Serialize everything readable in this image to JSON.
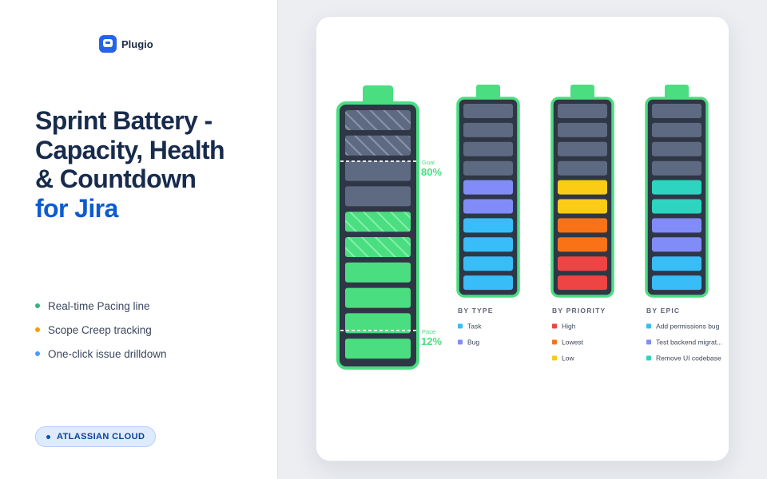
{
  "brand": {
    "name": "Plugio"
  },
  "headline": {
    "lines": [
      "Sprint Battery -",
      "Capacity, Health",
      "& Countdown"
    ],
    "accent": "for Jira"
  },
  "features": [
    {
      "label": "Real-time Pacing line",
      "color": "#36b37e"
    },
    {
      "label": "Scope Creep tracking",
      "color": "#f59e0b"
    },
    {
      "label": "One-click issue drilldown",
      "color": "#4c9aff"
    }
  ],
  "badge": {
    "label": "ATLASSIAN CLOUD"
  },
  "colors": {
    "battery_green": "#4ade80",
    "cell_gray": "#5e6a82",
    "shell": "#2f3747",
    "task": "#38bdf8",
    "bug": "#818cf8",
    "high": "#ef4444",
    "lowest": "#f97316",
    "low": "#facc15",
    "teal": "#2dd4bf"
  },
  "main_battery": {
    "goal": {
      "label": "Goal",
      "value": "80%"
    },
    "pace": {
      "label": "Pace",
      "value": "12%"
    },
    "cells": [
      "hatched-gray",
      "hatched-gray",
      "gray",
      "gray",
      "hatched-green",
      "hatched-green",
      "green",
      "green",
      "green",
      "green"
    ]
  },
  "breakdowns": [
    {
      "title": "BY TYPE",
      "cells": [
        "gray",
        "gray",
        "gray",
        "gray",
        "#818cf8",
        "#818cf8",
        "#38bdf8",
        "#38bdf8",
        "#38bdf8",
        "#38bdf8"
      ],
      "legend": [
        {
          "label": "Task",
          "color": "#38bdf8"
        },
        {
          "label": "Bug",
          "color": "#818cf8"
        }
      ]
    },
    {
      "title": "BY PRIORITY",
      "cells": [
        "gray",
        "gray",
        "gray",
        "gray",
        "#facc15",
        "#facc15",
        "#f97316",
        "#f97316",
        "#ef4444",
        "#ef4444"
      ],
      "legend": [
        {
          "label": "High",
          "color": "#ef4444"
        },
        {
          "label": "Lowest",
          "color": "#f97316"
        },
        {
          "label": "Low",
          "color": "#facc15"
        }
      ]
    },
    {
      "title": "BY EPIC",
      "cells": [
        "gray",
        "gray",
        "gray",
        "gray",
        "#2dd4bf",
        "#2dd4bf",
        "#818cf8",
        "#818cf8",
        "#38bdf8",
        "#38bdf8"
      ],
      "legend": [
        {
          "label": "Add permissions bug",
          "color": "#38bdf8"
        },
        {
          "label": "Test backend migrat...",
          "color": "#818cf8"
        },
        {
          "label": "Remove UI codebase",
          "color": "#2dd4bf"
        }
      ]
    }
  ]
}
